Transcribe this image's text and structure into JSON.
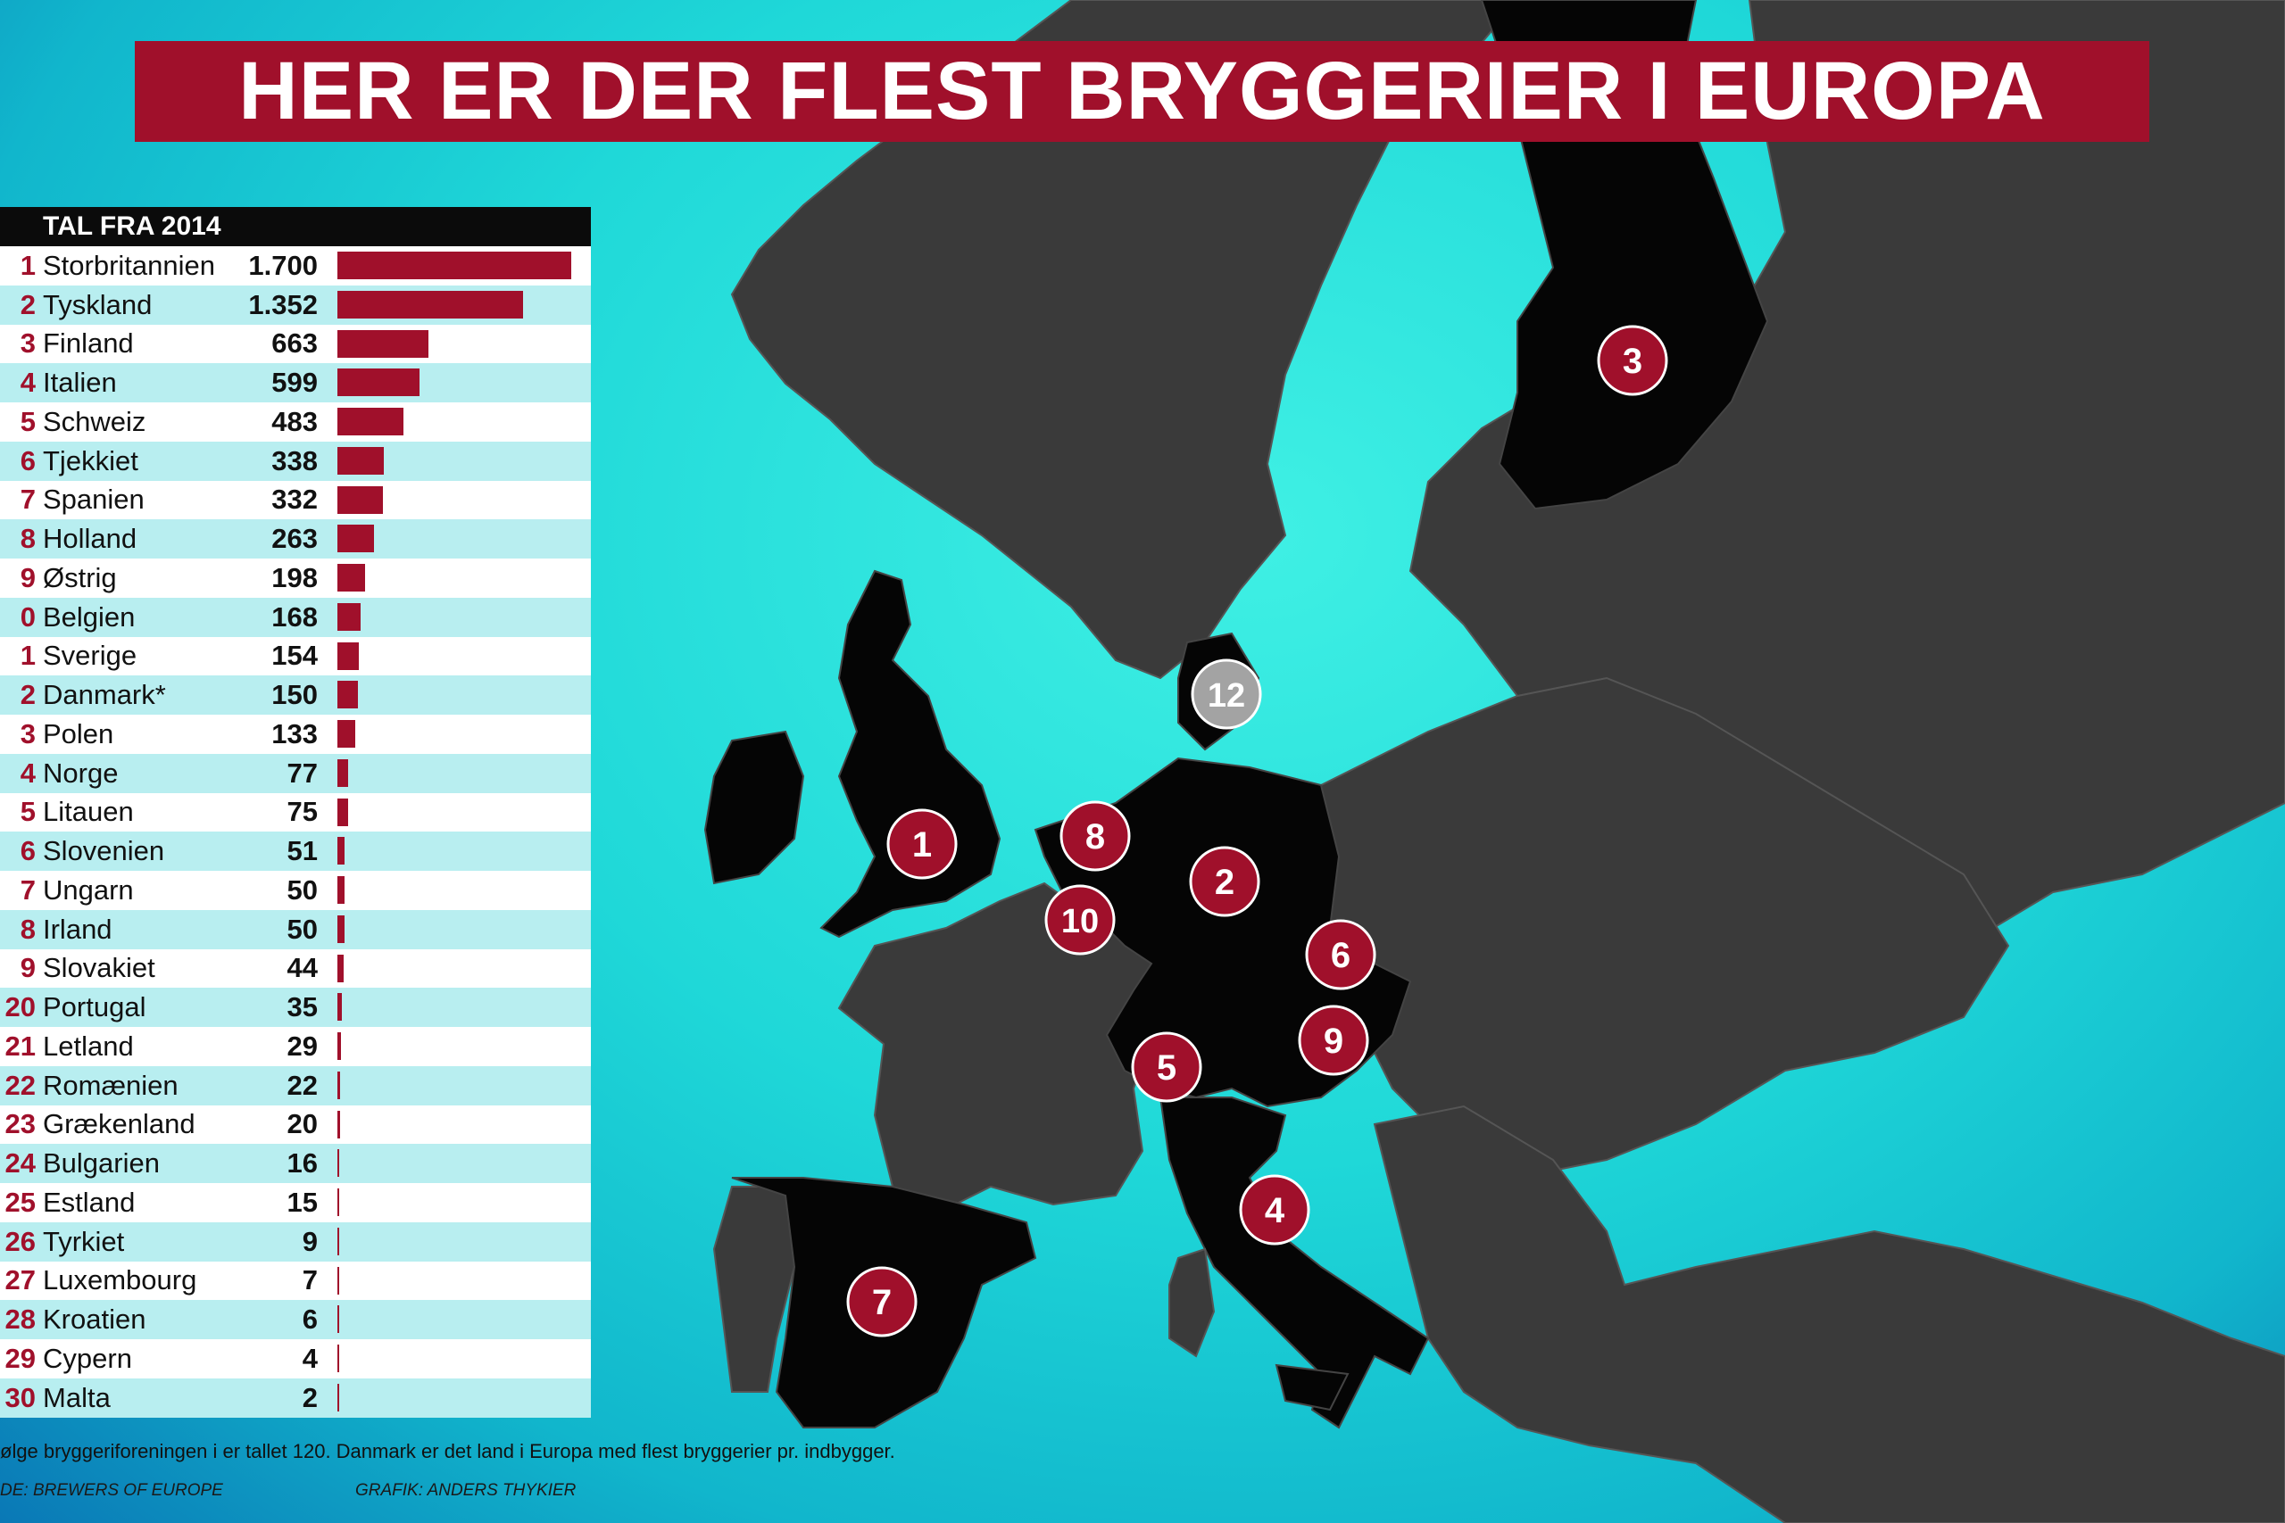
{
  "title": "HER ER DER FLEST BRYGGERIER I EUROPA",
  "table_header": "TAL FRA 2014",
  "footnote": "ølge bryggeriforeningen i er tallet 120. Danmark er det land i Europa med flest bryggerier pr. indbygger.",
  "source": "DE: BREWERS OF EUROPE",
  "credit": "GRAFIK: ANDERS THYKIER",
  "colors": {
    "bar": "#a0102b",
    "ranked_country": "#050505",
    "other_land": "#3a3a3a",
    "sea": "#22dcd8",
    "marker": "#a0102b",
    "marker_denmark": "#a3a3a3"
  },
  "chart_data": {
    "type": "bar",
    "orientation": "horizontal",
    "header": "TAL FRA 2014",
    "rank_labels": [
      "1",
      "2",
      "3",
      "4",
      "5",
      "6",
      "7",
      "8",
      "9",
      "0",
      "1",
      "2",
      "3",
      "4",
      "5",
      "6",
      "7",
      "8",
      "9",
      "20",
      "21",
      "22",
      "23",
      "24",
      "25",
      "26",
      "27",
      "28",
      "29",
      "30"
    ],
    "categories": [
      "Storbritannien",
      "Tyskland",
      "Finland",
      "Italien",
      "Schweiz",
      "Tjekkiet",
      "Spanien",
      "Holland",
      "Østrig",
      "Belgien",
      "Sverige",
      "Danmark*",
      "Polen",
      "Norge",
      "Litauen",
      "Slovenien",
      "Ungarn",
      "Irland",
      "Slovakiet",
      "Portugal",
      "Letland",
      "Romænien",
      "Grækenland",
      "Bulgarien",
      "Estland",
      "Tyrkiet",
      "Luxembourg",
      "Kroatien",
      "Cypern",
      "Malta"
    ],
    "value_labels": [
      "1.700",
      "1.352",
      "663",
      "599",
      "483",
      "338",
      "332",
      "263",
      "198",
      "168",
      "154",
      "150",
      "133",
      "77",
      "75",
      "51",
      "50",
      "50",
      "44",
      "35",
      "29",
      "22",
      "20",
      "16",
      "15",
      "9",
      "7",
      "6",
      "4",
      "2"
    ],
    "values": [
      1700,
      1352,
      663,
      599,
      483,
      338,
      332,
      263,
      198,
      168,
      154,
      150,
      133,
      77,
      75,
      51,
      50,
      50,
      44,
      35,
      29,
      22,
      20,
      16,
      15,
      9,
      7,
      6,
      4,
      2
    ],
    "xlim": [
      0,
      1700
    ]
  },
  "map_markers": [
    "1",
    "2",
    "3",
    "4",
    "5",
    "6",
    "7",
    "8",
    "9",
    "10",
    "12"
  ]
}
